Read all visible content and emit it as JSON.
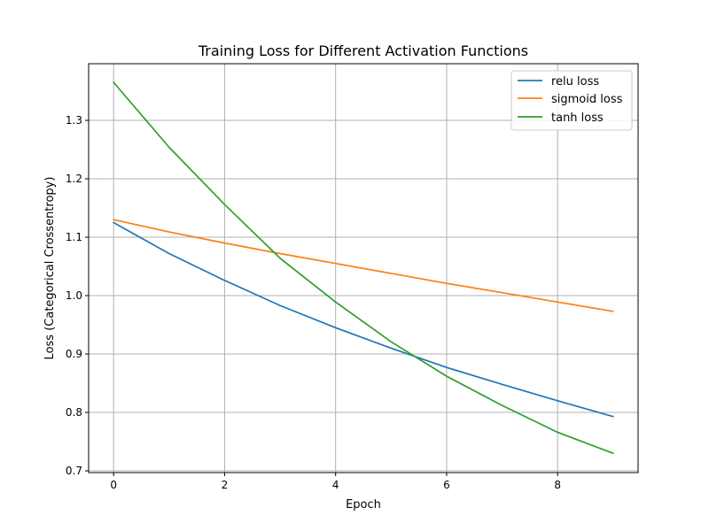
{
  "chart_data": {
    "type": "line",
    "title": "Training Loss for Different Activation Functions",
    "xlabel": "Epoch",
    "ylabel": "Loss (Categorical Crossentropy)",
    "xlim": [
      -0.45,
      9.45
    ],
    "ylim": [
      0.697,
      1.397
    ],
    "x": [
      0,
      1,
      2,
      3,
      4,
      5,
      6,
      7,
      8,
      9
    ],
    "x_ticks": [
      0,
      2,
      4,
      6,
      8
    ],
    "y_ticks": [
      0.7,
      0.8,
      0.9,
      1.0,
      1.1,
      1.2,
      1.3
    ],
    "x_tick_labels": [
      "0",
      "2",
      "4",
      "6",
      "8"
    ],
    "y_tick_labels": [
      "0.7",
      "0.8",
      "0.9",
      "1.0",
      "1.1",
      "1.2",
      "1.3"
    ],
    "grid": true,
    "legend_position": "top-right",
    "series": [
      {
        "name": "relu loss",
        "color": "#1f77b4",
        "values": [
          1.125,
          1.072,
          1.026,
          0.983,
          0.945,
          0.91,
          0.877,
          0.848,
          0.82,
          0.793
        ]
      },
      {
        "name": "sigmoid loss",
        "color": "#ff7f0e",
        "values": [
          1.13,
          1.109,
          1.09,
          1.072,
          1.055,
          1.038,
          1.021,
          1.005,
          0.989,
          0.973
        ]
      },
      {
        "name": "tanh loss",
        "color": "#2ca02c",
        "values": [
          1.365,
          1.254,
          1.156,
          1.064,
          0.989,
          0.921,
          0.862,
          0.812,
          0.766,
          0.73
        ]
      }
    ]
  }
}
